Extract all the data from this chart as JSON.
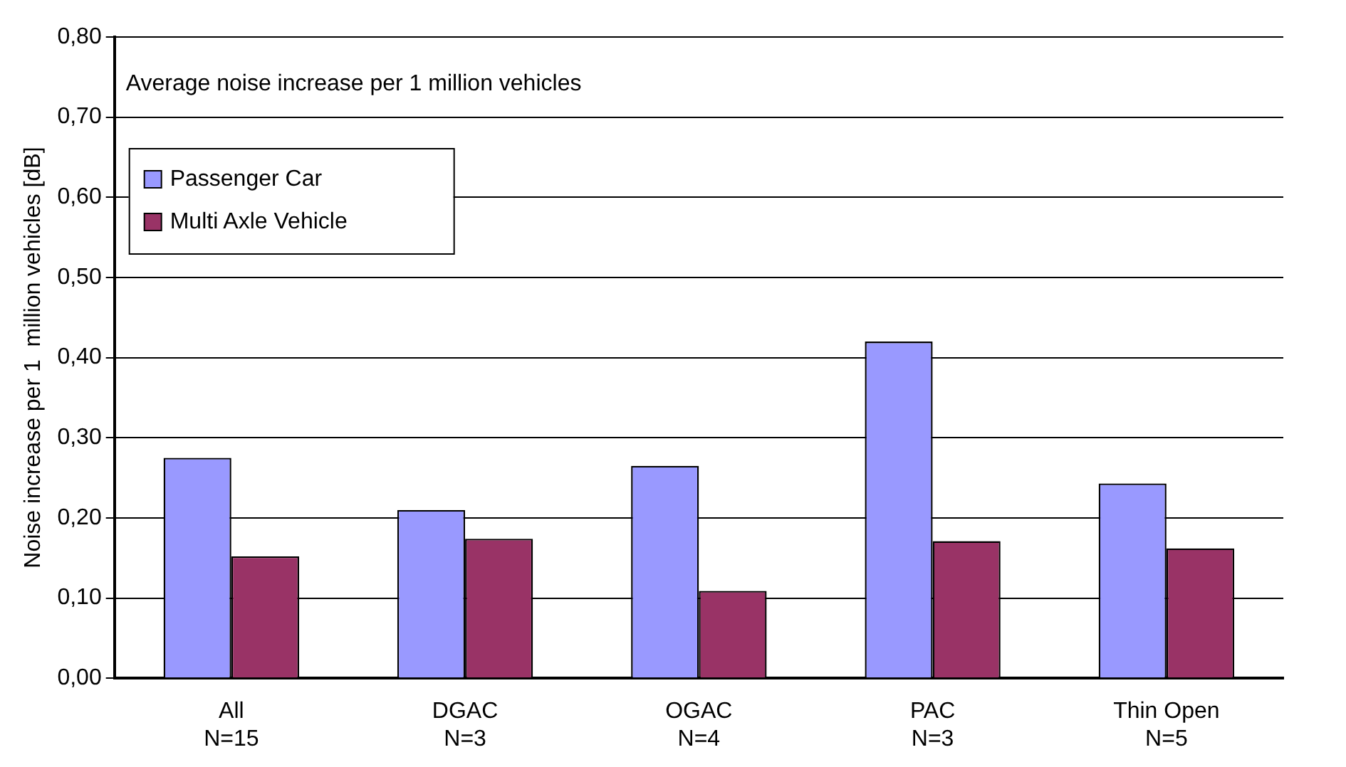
{
  "chart_data": {
    "type": "bar",
    "annotations": [
      "Average noise increase per 1 million vehicles"
    ],
    "ylabel": "Noise increase per 1  million vehicles [dB]",
    "categories": [
      "All\nN=15",
      "DGAC\nN=3",
      "OGAC\nN=4",
      "PAC\nN=3",
      "Thin Open\nN=5"
    ],
    "series": [
      {
        "name": "Passenger Car",
        "color": "#9999ff",
        "values": [
          0.275,
          0.21,
          0.265,
          0.42,
          0.243
        ]
      },
      {
        "name": "Multi Axle Vehicle",
        "color": "#993366",
        "values": [
          0.152,
          0.174,
          0.109,
          0.171,
          0.162
        ]
      }
    ],
    "ylim": [
      0,
      0.8
    ],
    "yticks": [
      {
        "value": 0,
        "label": "0,00"
      },
      {
        "value": 0.1,
        "label": "0,10"
      },
      {
        "value": 0.2,
        "label": "0,20"
      },
      {
        "value": 0.3,
        "label": "0,30"
      },
      {
        "value": 0.4,
        "label": "0,40"
      },
      {
        "value": 0.5,
        "label": "0,50"
      },
      {
        "value": 0.6,
        "label": "0,60"
      },
      {
        "value": 0.7,
        "label": "0,70"
      },
      {
        "value": 0.8,
        "label": "0,80"
      }
    ],
    "grid": "y",
    "legend": "top left"
  }
}
